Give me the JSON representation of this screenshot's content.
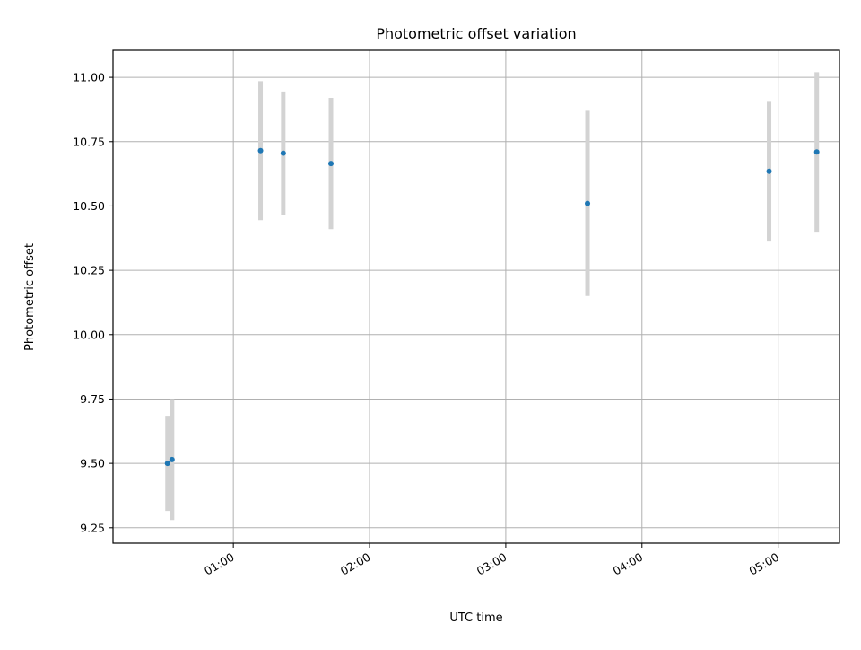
{
  "chart_data": {
    "type": "scatter",
    "title": "Photometric offset variation",
    "xlabel": "UTC time",
    "ylabel": "Photometric offset",
    "x_axis_type": "time",
    "xlim": [
      "00:07",
      "05:27"
    ],
    "ylim": [
      9.19,
      11.105
    ],
    "x_ticks": [
      "01:00",
      "02:00",
      "03:00",
      "04:00",
      "05:00"
    ],
    "y_ticks": [
      "9.25",
      "9.50",
      "9.75",
      "10.00",
      "10.25",
      "10.50",
      "10.75",
      "11.00"
    ],
    "y_tick_values": [
      9.25,
      9.5,
      9.75,
      10.0,
      10.25,
      10.5,
      10.75,
      11.0
    ],
    "grid": true,
    "point_color": "#1f77b4",
    "errorbar_color": "#d3d3d3",
    "points": [
      {
        "x": "00:31",
        "y": 9.5,
        "yerr": 0.185
      },
      {
        "x": "00:33",
        "y": 9.515,
        "yerr": 0.235
      },
      {
        "x": "01:12",
        "y": 10.715,
        "yerr": 0.27
      },
      {
        "x": "01:22",
        "y": 10.705,
        "yerr": 0.24
      },
      {
        "x": "01:43",
        "y": 10.665,
        "yerr": 0.255
      },
      {
        "x": "03:36",
        "y": 10.51,
        "yerr": 0.36
      },
      {
        "x": "04:56",
        "y": 10.635,
        "yerr": 0.27
      },
      {
        "x": "05:17",
        "y": 10.71,
        "yerr": 0.31
      }
    ]
  }
}
